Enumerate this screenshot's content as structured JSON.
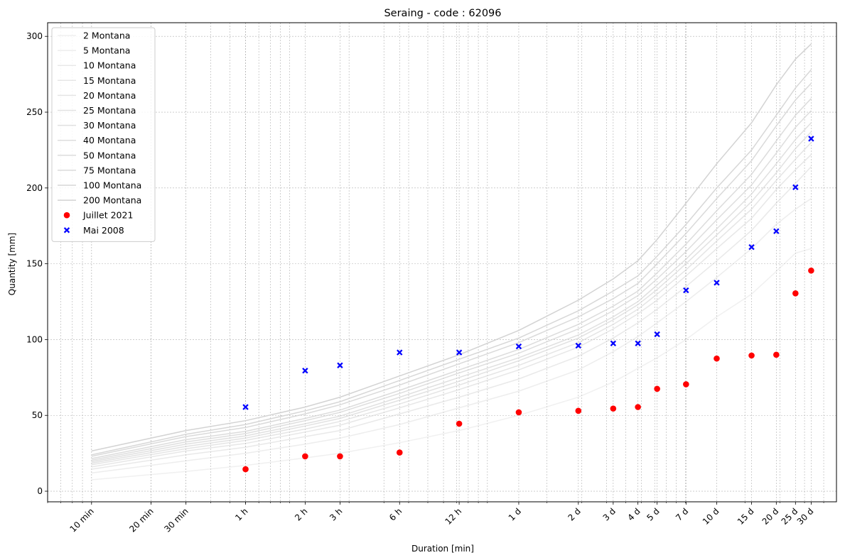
{
  "chart_data": {
    "type": "line",
    "title": "Seraing - code : 62096",
    "xlabel": "Duration [min]",
    "ylabel": "Quantity [mm]",
    "x_scale": "log",
    "x_unit": "min",
    "xlim": [
      6,
      58000
    ],
    "ylim": [
      -7,
      309
    ],
    "grid": true,
    "legend_position": "top-left",
    "x_ticks": [
      {
        "label": "10 min",
        "value": 10
      },
      {
        "label": "20 min",
        "value": 20
      },
      {
        "label": "30 min",
        "value": 30
      },
      {
        "label": "1 h",
        "value": 60
      },
      {
        "label": "2 h",
        "value": 120
      },
      {
        "label": "3 h",
        "value": 180
      },
      {
        "label": "6 h",
        "value": 360
      },
      {
        "label": "12 h",
        "value": 720
      },
      {
        "label": "1 d",
        "value": 1440
      },
      {
        "label": "2 d",
        "value": 2880
      },
      {
        "label": "3 d",
        "value": 4320
      },
      {
        "label": "4 d",
        "value": 5760
      },
      {
        "label": "5 d",
        "value": 7200
      },
      {
        "label": "7 d",
        "value": 10080
      },
      {
        "label": "10 d",
        "value": 14400
      },
      {
        "label": "15 d",
        "value": 21600
      },
      {
        "label": "20 d",
        "value": 28800
      },
      {
        "label": "25 d",
        "value": 36000
      },
      {
        "label": "30 d",
        "value": 43200
      }
    ],
    "y_ticks": [
      0,
      50,
      100,
      150,
      200,
      250,
      300
    ],
    "line_x": [
      10,
      30,
      60,
      120,
      180,
      360,
      720,
      1440,
      2880,
      4320,
      5760,
      7200,
      10080,
      14400,
      21600,
      28800,
      36000,
      43200
    ],
    "line_color": "#d3d3d3",
    "series": [
      {
        "name": "2 Montana",
        "opacity": 0.35,
        "values": [
          7.5,
          13,
          17,
          22,
          25,
          32,
          40,
          50,
          62,
          72,
          81,
          88,
          100,
          115,
          130,
          145,
          157,
          160
        ]
      },
      {
        "name": "5 Montana",
        "opacity": 0.42,
        "values": [
          12,
          20,
          25,
          31,
          35,
          44,
          55,
          66,
          80,
          92,
          102,
          111,
          125,
          141,
          160,
          176,
          186,
          193
        ]
      },
      {
        "name": "10 Montana",
        "opacity": 0.5,
        "values": [
          14.5,
          24,
          29,
          36,
          40,
          51,
          62,
          74,
          89,
          101,
          111,
          120,
          135,
          152,
          172,
          190,
          203,
          214
        ]
      },
      {
        "name": "15 Montana",
        "opacity": 0.55,
        "values": [
          16,
          26.5,
          31.5,
          39,
          43.5,
          55,
          67,
          80,
          95,
          107,
          117,
          126,
          142,
          160,
          180,
          199,
          212,
          222
        ]
      },
      {
        "name": "20 Montana",
        "opacity": 0.6,
        "values": [
          17.5,
          28,
          33.5,
          41,
          46,
          57.5,
          70,
          83,
          98,
          110,
          120,
          130,
          146,
          165,
          186,
          205,
          219,
          230
        ]
      },
      {
        "name": "25 Montana",
        "opacity": 0.65,
        "values": [
          18.5,
          29.5,
          35,
          43,
          48,
          60,
          72.5,
          86,
          101,
          113,
          123,
          133,
          150,
          169,
          191,
          210,
          226,
          237
        ]
      },
      {
        "name": "30 Montana",
        "opacity": 0.7,
        "values": [
          19.5,
          31,
          36.5,
          44.5,
          49.5,
          62,
          75,
          88,
          103,
          115,
          125,
          136,
          153,
          173,
          196,
          216,
          232,
          243
        ]
      },
      {
        "name": "40 Montana",
        "opacity": 0.75,
        "values": [
          20.5,
          32.5,
          38,
          46.5,
          52,
          64.5,
          78,
          91,
          107,
          119,
          129,
          140,
          158,
          179,
          202,
          223,
          240,
          251
        ]
      },
      {
        "name": "50 Montana",
        "opacity": 0.8,
        "values": [
          21.5,
          34,
          39.5,
          48,
          53.5,
          66.5,
          80,
          93.5,
          110,
          122,
          132,
          144,
          163,
          185,
          209,
          231,
          248,
          259
        ]
      },
      {
        "name": "75 Montana",
        "opacity": 0.85,
        "values": [
          23,
          36,
          42,
          51,
          57,
          70,
          84,
          98,
          115,
          127,
          137,
          150,
          170,
          193,
          218,
          241,
          258,
          269
        ]
      },
      {
        "name": "100 Montana",
        "opacity": 0.9,
        "values": [
          24,
          37.5,
          44,
          53,
          59,
          73,
          87,
          101,
          119,
          132,
          142,
          155,
          176,
          200,
          225,
          248,
          266,
          278
        ]
      },
      {
        "name": "200 Montana",
        "opacity": 1.0,
        "values": [
          26.5,
          40,
          46.5,
          55.5,
          62,
          76,
          90,
          106,
          126,
          140,
          152,
          166,
          190,
          216,
          243,
          268,
          285,
          295
        ]
      }
    ],
    "scatter": [
      {
        "name": "Juillet 2021",
        "marker": "circle",
        "color": "#ff0000",
        "x": [
          60,
          120,
          180,
          360,
          720,
          1440,
          2880,
          4320,
          5760,
          7200,
          10080,
          14400,
          21600,
          28800,
          36000,
          43200
        ],
        "y": [
          14.5,
          23,
          23,
          25.5,
          44.5,
          52,
          53,
          54.5,
          55.5,
          67.5,
          70.5,
          87.5,
          89.5,
          90,
          130.5,
          145.5
        ]
      },
      {
        "name": "Mai 2008",
        "marker": "x-filled",
        "color": "#0000ff",
        "x": [
          60,
          120,
          180,
          360,
          720,
          1440,
          2880,
          4320,
          5760,
          7200,
          10080,
          14400,
          21600,
          28800,
          36000,
          43200
        ],
        "y": [
          55.5,
          79.5,
          83,
          91.5,
          91.5,
          95.5,
          96,
          97.5,
          97.5,
          103.5,
          132.5,
          137.5,
          161,
          171.5,
          200.5,
          232.5
        ]
      }
    ]
  }
}
